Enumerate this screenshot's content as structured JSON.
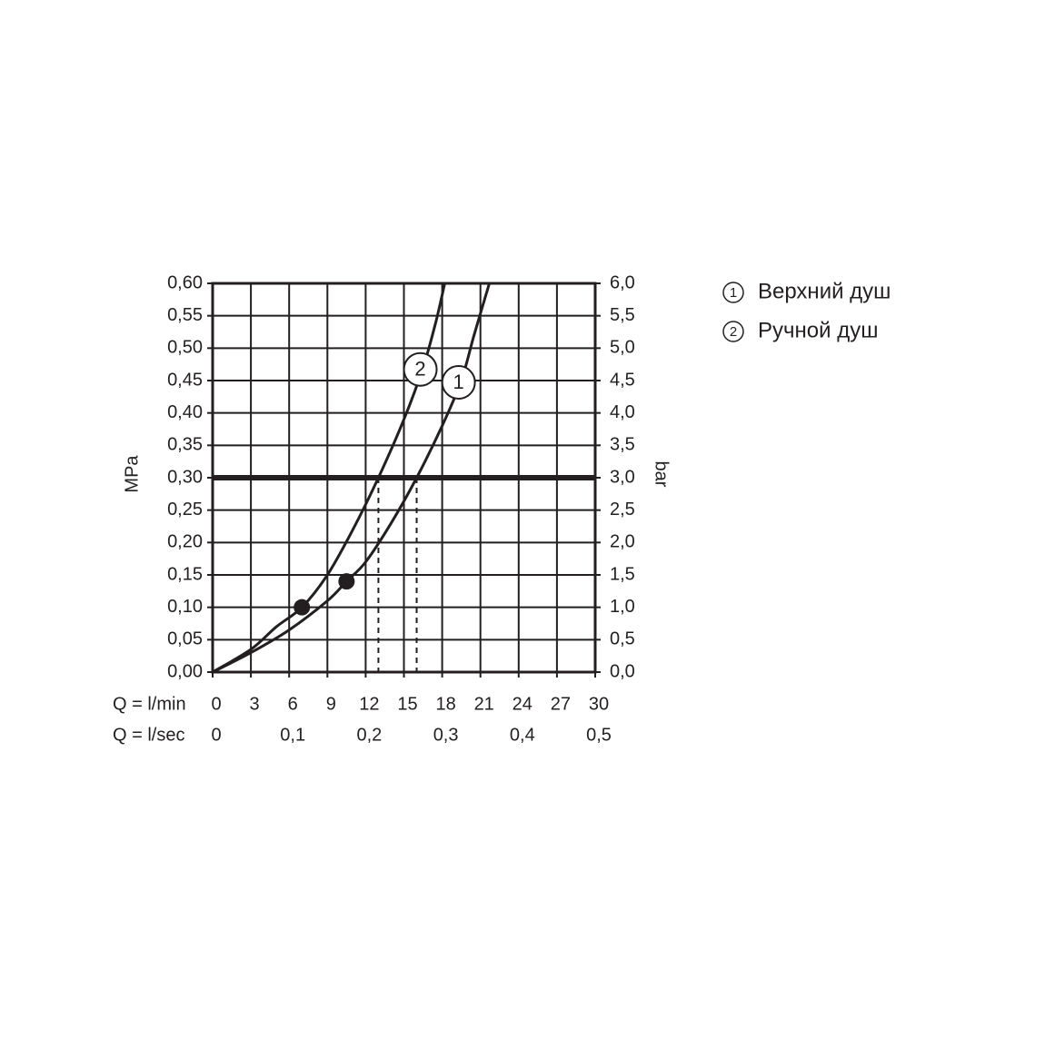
{
  "chart_data": {
    "type": "line",
    "ylabel": "MPa",
    "y2label": "bar",
    "xlabel": "Q = l/min",
    "x2label": "Q = l/sec",
    "xlim": [
      0,
      30
    ],
    "xticks": [
      0,
      3,
      6,
      9,
      12,
      15,
      18,
      21,
      24,
      27,
      30
    ],
    "x2lim": [
      0,
      0.5
    ],
    "x2ticks": [
      0,
      {
        "value": 0.1,
        "label": "0,1"
      },
      {
        "value": 0.2,
        "label": "0,2"
      },
      {
        "value": 0.3,
        "label": "0,3"
      },
      {
        "value": 0.4,
        "label": "0,4"
      },
      {
        "value": 0.5,
        "label": "0,5"
      }
    ],
    "ylim": [
      0,
      0.6
    ],
    "yticks": [
      {
        "value": 0,
        "label": "0,00"
      },
      {
        "value": 0.05,
        "label": "0,05"
      },
      {
        "value": 0.1,
        "label": "0,10"
      },
      {
        "value": 0.15,
        "label": "0,15"
      },
      {
        "value": 0.2,
        "label": "0,20"
      },
      {
        "value": 0.25,
        "label": "0,25"
      },
      {
        "value": 0.3,
        "label": "0,30"
      },
      {
        "value": 0.35,
        "label": "0,35"
      },
      {
        "value": 0.4,
        "label": "0,40"
      },
      {
        "value": 0.45,
        "label": "0,45"
      },
      {
        "value": 0.5,
        "label": "0,50"
      },
      {
        "value": 0.55,
        "label": "0,55"
      },
      {
        "value": 0.6,
        "label": "0,60"
      }
    ],
    "y2lim": [
      0,
      6
    ],
    "y2ticks": [
      {
        "value": 0,
        "label": "0,0"
      },
      {
        "value": 0.5,
        "label": "0,5"
      },
      {
        "value": 1,
        "label": "1,0"
      },
      {
        "value": 1.5,
        "label": "1,5"
      },
      {
        "value": 2,
        "label": "2,0"
      },
      {
        "value": 2.5,
        "label": "2,5"
      },
      {
        "value": 3,
        "label": "3,0"
      },
      {
        "value": 3.5,
        "label": "3,5"
      },
      {
        "value": 4,
        "label": "4,0"
      },
      {
        "value": 4.5,
        "label": "4,5"
      },
      {
        "value": 5,
        "label": "5,0"
      },
      {
        "value": 5.5,
        "label": "5,5"
      },
      {
        "value": 6,
        "label": "6,0"
      }
    ],
    "grid": true,
    "hline": 0.3,
    "series": [
      {
        "name": "Верхний душ",
        "label": "1",
        "color": "#231f20",
        "x": [
          0,
          3,
          6,
          9,
          10.5,
          12,
          14,
          16,
          18,
          19.5,
          20.5,
          21.7
        ],
        "values": [
          0,
          0.03,
          0.065,
          0.11,
          0.14,
          0.17,
          0.23,
          0.3,
          0.38,
          0.45,
          0.52,
          0.6
        ],
        "points": {
          "x": [
            10.5
          ],
          "values": [
            0.14
          ]
        },
        "drop_x": 16
      },
      {
        "name": "Ручной душ",
        "label": "2",
        "color": "#231f20",
        "x": [
          0,
          3,
          5,
          7,
          9,
          11,
          13,
          15,
          16.5,
          17.5,
          18.2
        ],
        "values": [
          0,
          0.035,
          0.07,
          0.1,
          0.15,
          0.22,
          0.3,
          0.39,
          0.47,
          0.54,
          0.6
        ],
        "points": {
          "x": [
            7
          ],
          "values": [
            0.1
          ]
        },
        "drop_x": 13
      }
    ]
  }
}
